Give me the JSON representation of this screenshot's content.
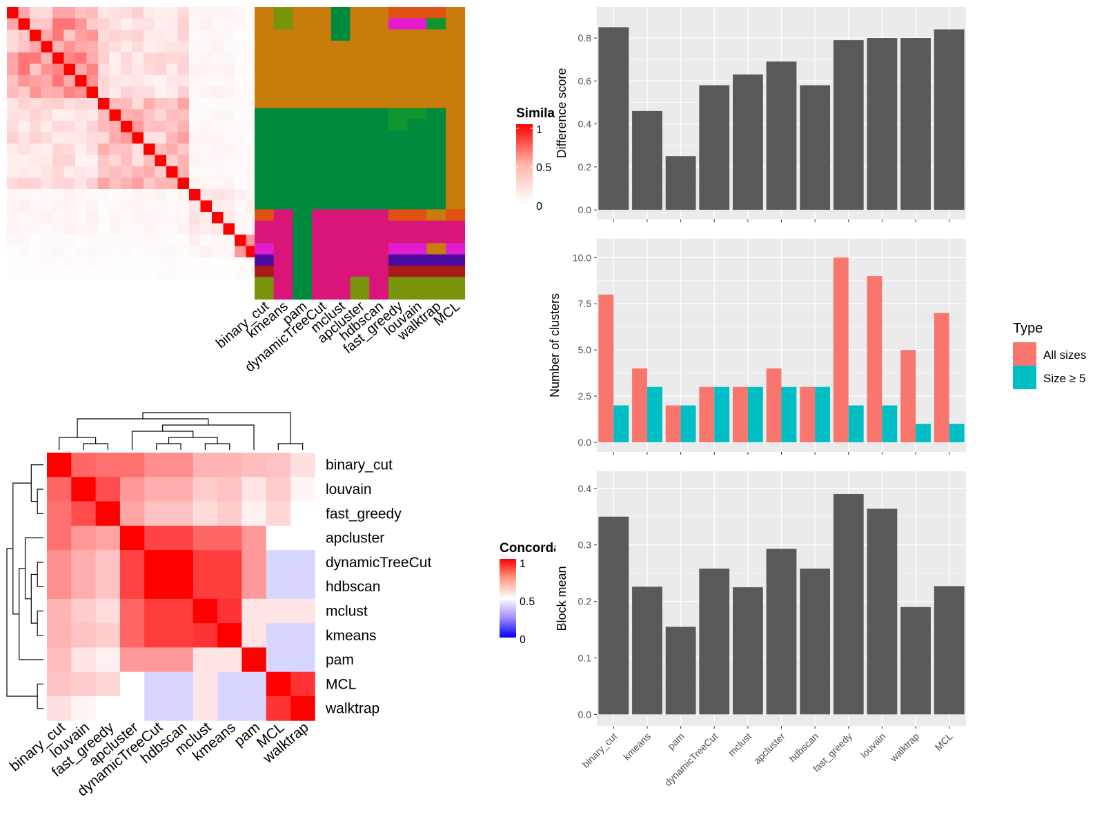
{
  "colors": {
    "sim_low": "#ffffff",
    "sim_high": "#ff0000",
    "conc_low": "#0000ff",
    "conc_mid": "#ffffff",
    "conc_high": "#ff0000",
    "bar_gray": "#595959",
    "panel_bg": "#ebebeb",
    "all_sizes": "#f8766d",
    "size_ge5": "#00bfc4"
  },
  "legends": {
    "similarity": {
      "title": "Similarity",
      "ticks": [
        "1",
        "0.5",
        "0"
      ]
    },
    "concordance": {
      "title": "Concordance",
      "ticks": [
        "1",
        "0.5",
        "0"
      ]
    },
    "type": {
      "title": "Type",
      "items": [
        "All sizes",
        "Size ≥ 5"
      ]
    }
  },
  "chart_data": [
    {
      "type": "heatmap",
      "id": "similarity_matrix",
      "size": 24,
      "scale": [
        0,
        1
      ],
      "groups": [
        [
          0,
          8
        ],
        [
          8,
          16
        ],
        [
          16,
          20
        ],
        [
          20,
          22
        ],
        [
          22,
          24
        ]
      ],
      "block_means": [
        [
          0.35,
          0.12,
          0.04,
          0.02,
          0.01
        ],
        [
          0.12,
          0.25,
          0.03,
          0.02,
          0.01
        ],
        [
          0.04,
          0.03,
          0.08,
          0.04,
          0.01
        ],
        [
          0.02,
          0.02,
          0.04,
          0.3,
          0.02
        ],
        [
          0.01,
          0.01,
          0.01,
          0.02,
          0.45
        ]
      ]
    },
    {
      "type": "heatmap",
      "id": "cluster_assignments",
      "methods": [
        "binary_cut",
        "kmeans",
        "pam",
        "dynamicTreeCut",
        "mclust",
        "apcluster",
        "hdbscan",
        "fast_greedy",
        "louvain",
        "walktrap",
        "MCL"
      ],
      "palette": {
        "A": "#c77c0c",
        "B": "#008a3e",
        "C": "#d9157a",
        "D": "#77940b",
        "E": "#e05212",
        "F": "#e31cd1",
        "G": "#10962e",
        "H": "#4b0ba0",
        "I": "#a91b1b"
      },
      "rows": [
        [
          "A",
          "D",
          "A",
          "A",
          "B",
          "A",
          "A",
          "E",
          "E",
          "E",
          "A"
        ],
        [
          "A",
          "D",
          "A",
          "A",
          "B",
          "A",
          "A",
          "F",
          "F",
          "G",
          "A"
        ],
        [
          "A",
          "A",
          "A",
          "A",
          "B",
          "A",
          "A",
          "A",
          "A",
          "A",
          "A"
        ],
        [
          "A",
          "A",
          "A",
          "A",
          "A",
          "A",
          "A",
          "A",
          "A",
          "A",
          "A"
        ],
        [
          "A",
          "A",
          "A",
          "A",
          "A",
          "A",
          "A",
          "A",
          "A",
          "A",
          "A"
        ],
        [
          "A",
          "A",
          "A",
          "A",
          "A",
          "A",
          "A",
          "A",
          "A",
          "A",
          "A"
        ],
        [
          "A",
          "A",
          "A",
          "A",
          "A",
          "A",
          "A",
          "A",
          "A",
          "A",
          "A"
        ],
        [
          "A",
          "A",
          "A",
          "A",
          "A",
          "A",
          "A",
          "A",
          "A",
          "A",
          "A"
        ],
        [
          "A",
          "A",
          "A",
          "A",
          "A",
          "A",
          "A",
          "A",
          "A",
          "A",
          "A"
        ],
        [
          "B",
          "B",
          "B",
          "B",
          "B",
          "B",
          "B",
          "G",
          "G",
          "B",
          "A"
        ],
        [
          "B",
          "B",
          "B",
          "B",
          "B",
          "B",
          "B",
          "G",
          "B",
          "B",
          "A"
        ],
        [
          "B",
          "B",
          "B",
          "B",
          "B",
          "B",
          "B",
          "B",
          "B",
          "B",
          "A"
        ],
        [
          "B",
          "B",
          "B",
          "B",
          "B",
          "B",
          "B",
          "B",
          "B",
          "B",
          "A"
        ],
        [
          "B",
          "B",
          "B",
          "B",
          "B",
          "B",
          "B",
          "B",
          "B",
          "B",
          "A"
        ],
        [
          "B",
          "B",
          "B",
          "B",
          "B",
          "B",
          "B",
          "B",
          "B",
          "B",
          "A"
        ],
        [
          "B",
          "B",
          "B",
          "B",
          "B",
          "B",
          "B",
          "B",
          "B",
          "B",
          "A"
        ],
        [
          "B",
          "B",
          "B",
          "B",
          "B",
          "B",
          "B",
          "B",
          "B",
          "B",
          "A"
        ],
        [
          "B",
          "B",
          "B",
          "B",
          "B",
          "B",
          "B",
          "B",
          "B",
          "B",
          "A"
        ],
        [
          "E",
          "C",
          "B",
          "C",
          "C",
          "C",
          "C",
          "E",
          "E",
          "A",
          "E"
        ],
        [
          "C",
          "C",
          "B",
          "C",
          "C",
          "C",
          "C",
          "C",
          "C",
          "C",
          "C"
        ],
        [
          "C",
          "C",
          "B",
          "C",
          "C",
          "C",
          "C",
          "C",
          "C",
          "C",
          "C"
        ],
        [
          "F",
          "C",
          "B",
          "C",
          "C",
          "C",
          "C",
          "F",
          "F",
          "A",
          "F"
        ],
        [
          "H",
          "C",
          "B",
          "C",
          "C",
          "C",
          "C",
          "H",
          "H",
          "H",
          "H"
        ],
        [
          "I",
          "C",
          "B",
          "C",
          "C",
          "C",
          "C",
          "I",
          "I",
          "I",
          "I"
        ],
        [
          "D",
          "C",
          "B",
          "C",
          "C",
          "D",
          "C",
          "D",
          "D",
          "D",
          "D"
        ],
        [
          "D",
          "C",
          "B",
          "C",
          "C",
          "D",
          "C",
          "D",
          "D",
          "D",
          "D"
        ]
      ]
    },
    {
      "type": "heatmap",
      "id": "concordance",
      "labels": [
        "binary_cut",
        "louvain",
        "fast_greedy",
        "apcluster",
        "dynamicTreeCut",
        "hdbscan",
        "mclust",
        "kmeans",
        "pam",
        "MCL",
        "walktrap"
      ],
      "scale": [
        0,
        0.5,
        1
      ],
      "matrix": [
        [
          1.0,
          0.8,
          0.78,
          0.78,
          0.72,
          0.72,
          0.65,
          0.65,
          0.63,
          0.62,
          0.56
        ],
        [
          0.8,
          1.0,
          0.85,
          0.7,
          0.66,
          0.66,
          0.6,
          0.62,
          0.55,
          0.6,
          0.52
        ],
        [
          0.78,
          0.85,
          1.0,
          0.68,
          0.62,
          0.62,
          0.57,
          0.6,
          0.53,
          0.58,
          0.5
        ],
        [
          0.78,
          0.7,
          0.68,
          1.0,
          0.87,
          0.87,
          0.8,
          0.8,
          0.7,
          0.5,
          0.5
        ],
        [
          0.72,
          0.66,
          0.62,
          0.87,
          1.0,
          1.0,
          0.88,
          0.88,
          0.7,
          0.42,
          0.42
        ],
        [
          0.72,
          0.66,
          0.62,
          0.87,
          1.0,
          1.0,
          0.88,
          0.88,
          0.7,
          0.42,
          0.42
        ],
        [
          0.65,
          0.6,
          0.57,
          0.8,
          0.88,
          0.88,
          1.0,
          0.9,
          0.55,
          0.55,
          0.55
        ],
        [
          0.65,
          0.62,
          0.6,
          0.8,
          0.88,
          0.88,
          0.9,
          1.0,
          0.55,
          0.42,
          0.42
        ],
        [
          0.63,
          0.55,
          0.53,
          0.7,
          0.7,
          0.7,
          0.55,
          0.55,
          1.0,
          0.42,
          0.42
        ],
        [
          0.62,
          0.6,
          0.58,
          0.5,
          0.42,
          0.42,
          0.55,
          0.42,
          0.42,
          1.0,
          0.9
        ],
        [
          0.56,
          0.52,
          0.5,
          0.5,
          0.42,
          0.42,
          0.55,
          0.42,
          0.42,
          0.9,
          1.0
        ]
      ],
      "row_tree": [
        [
          4,
          5
        ],
        [
          6,
          7
        ],
        [
          11,
          12
        ],
        [
          3,
          13
        ],
        [
          14,
          8
        ],
        [
          1,
          2
        ],
        [
          0,
          16
        ],
        [
          9,
          10
        ],
        [
          15,
          17
        ],
        [
          18,
          19
        ]
      ],
      "col_tree": [
        [
          4,
          5
        ],
        [
          6,
          7
        ],
        [
          11,
          12
        ],
        [
          3,
          13
        ],
        [
          14,
          8
        ],
        [
          1,
          2
        ],
        [
          0,
          16
        ],
        [
          9,
          10
        ],
        [
          15,
          17
        ],
        [
          18,
          19
        ]
      ]
    },
    {
      "type": "bar",
      "id": "difference_score",
      "categories": [
        "binary_cut",
        "kmeans",
        "pam",
        "dynamicTreeCut",
        "mclust",
        "apcluster",
        "hdbscan",
        "fast_greedy",
        "louvain",
        "walktrap",
        "MCL"
      ],
      "values": [
        0.85,
        0.46,
        0.25,
        0.58,
        0.63,
        0.69,
        0.58,
        0.79,
        0.8,
        0.8,
        0.84
      ],
      "ylabel": "Difference score",
      "ylim": [
        0,
        0.9
      ],
      "yticks": [
        0.0,
        0.2,
        0.4,
        0.6,
        0.8
      ],
      "ytick_labels": [
        "0.0",
        "0.2",
        "0.4",
        "0.6",
        "0.8"
      ],
      "grid": true
    },
    {
      "type": "bar",
      "id": "number_of_clusters",
      "categories": [
        "binary_cut",
        "kmeans",
        "pam",
        "dynamicTreeCut",
        "mclust",
        "apcluster",
        "hdbscan",
        "fast_greedy",
        "louvain",
        "walktrap",
        "MCL"
      ],
      "series": [
        {
          "name": "All sizes",
          "values": [
            8,
            4,
            2,
            3,
            3,
            4,
            3,
            10,
            9,
            5,
            7
          ]
        },
        {
          "name": "Size ≥ 5",
          "values": [
            2,
            3,
            2,
            3,
            3,
            3,
            3,
            2,
            2,
            1,
            1
          ]
        }
      ],
      "ylabel": "Number of clusters",
      "ylim": [
        0,
        10.5
      ],
      "yticks": [
        0.0,
        2.5,
        5.0,
        7.5,
        10.0
      ],
      "ytick_labels": [
        "0.0",
        "2.5",
        "5.0",
        "7.5",
        "10.0"
      ],
      "legend": "right",
      "grid": true
    },
    {
      "type": "bar",
      "id": "block_mean",
      "categories": [
        "binary_cut",
        "kmeans",
        "pam",
        "dynamicTreeCut",
        "mclust",
        "apcluster",
        "hdbscan",
        "fast_greedy",
        "louvain",
        "walktrap",
        "MCL"
      ],
      "values": [
        0.35,
        0.226,
        0.155,
        0.258,
        0.225,
        0.293,
        0.258,
        0.39,
        0.364,
        0.19,
        0.227
      ],
      "ylabel": "Block mean",
      "ylim": [
        0,
        0.41
      ],
      "yticks": [
        0.0,
        0.1,
        0.2,
        0.3,
        0.4
      ],
      "ytick_labels": [
        "0.0",
        "0.1",
        "0.2",
        "0.3",
        "0.4"
      ],
      "grid": true
    }
  ]
}
